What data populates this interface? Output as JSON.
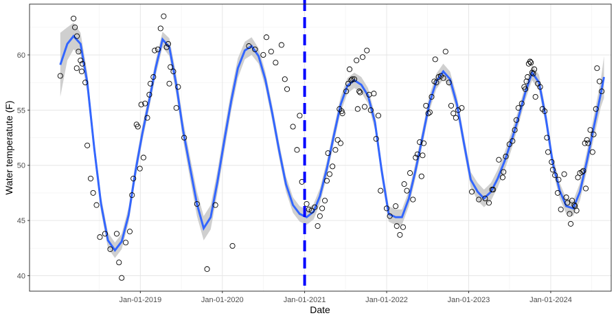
{
  "chart_data": {
    "type": "scatter",
    "title": "",
    "xlabel": "Date",
    "ylabel": "Water temperatute (F)",
    "x_tick_labels": [
      "Jan-01-2019",
      "Jan-01-2020",
      "Jan-01-2021",
      "Jan-01-2022",
      "Jan-01-2023",
      "Jan-01-2024"
    ],
    "x_ticks": [
      "2019-01-01",
      "2020-01-01",
      "2021-01-01",
      "2022-01-01",
      "2023-01-01",
      "2024-01-01"
    ],
    "xlim": [
      "2017-08-26",
      "2024-09-26"
    ],
    "y_ticks": [
      40,
      45,
      50,
      55,
      60
    ],
    "ylim": [
      38.6,
      64.6
    ],
    "grid": true,
    "vline": {
      "x": "2021-01-01",
      "color": "#0000ff",
      "style": "dashed"
    },
    "colors": {
      "smooth": "#3366ff",
      "band": "#bfbfbf",
      "points": "#000000",
      "vline": "#0000ff"
    },
    "points": [
      [
        "2018-01-10",
        58.1
      ],
      [
        "2018-03-10",
        63.3
      ],
      [
        "2018-03-16",
        62.5
      ],
      [
        "2018-03-25",
        61.7
      ],
      [
        "2018-04-01",
        60.3
      ],
      [
        "2018-03-24",
        58.8
      ],
      [
        "2018-04-10",
        59.5
      ],
      [
        "2018-04-18",
        59.2
      ],
      [
        "2018-04-15",
        58.5
      ],
      [
        "2018-05-01",
        57.5
      ],
      [
        "2018-05-10",
        51.8
      ],
      [
        "2018-05-25",
        48.8
      ],
      [
        "2018-06-05",
        47.5
      ],
      [
        "2018-06-20",
        46.4
      ],
      [
        "2018-07-05",
        43.5
      ],
      [
        "2018-07-28",
        43.8
      ],
      [
        "2018-08-20",
        42.4
      ],
      [
        "2018-09-18",
        43.8
      ],
      [
        "2018-09-28",
        41.2
      ],
      [
        "2018-10-10",
        39.8
      ],
      [
        "2018-10-28",
        43.0
      ],
      [
        "2018-11-15",
        44.0
      ],
      [
        "2018-11-25",
        47.3
      ],
      [
        "2018-12-01",
        48.8
      ],
      [
        "2018-12-15",
        53.7
      ],
      [
        "2018-12-21",
        53.5
      ],
      [
        "2018-12-30",
        49.7
      ],
      [
        "2019-01-05",
        55.5
      ],
      [
        "2019-01-15",
        50.7
      ],
      [
        "2019-01-22",
        55.6
      ],
      [
        "2019-02-01",
        54.3
      ],
      [
        "2019-02-10",
        56.4
      ],
      [
        "2019-02-15",
        57.4
      ],
      [
        "2019-02-28",
        58.0
      ],
      [
        "2019-03-06",
        60.4
      ],
      [
        "2019-03-20",
        60.5
      ],
      [
        "2019-04-01",
        62.4
      ],
      [
        "2019-04-15",
        63.5
      ],
      [
        "2019-04-28",
        60.7
      ],
      [
        "2019-05-05",
        61.0
      ],
      [
        "2019-05-10",
        57.4
      ],
      [
        "2019-05-15",
        58.9
      ],
      [
        "2019-05-28",
        58.5
      ],
      [
        "2019-06-10",
        55.2
      ],
      [
        "2019-06-18",
        57.1
      ],
      [
        "2019-07-15",
        52.5
      ],
      [
        "2019-09-10",
        46.5
      ],
      [
        "2019-10-25",
        40.6
      ],
      [
        "2019-12-01",
        46.4
      ],
      [
        "2020-02-15",
        42.7
      ],
      [
        "2020-04-28",
        60.8
      ],
      [
        "2020-05-25",
        60.5
      ],
      [
        "2020-07-01",
        60.0
      ],
      [
        "2020-07-15",
        61.6
      ],
      [
        "2020-08-05",
        60.3
      ],
      [
        "2020-08-25",
        59.3
      ],
      [
        "2020-09-20",
        60.9
      ],
      [
        "2020-10-05",
        57.8
      ],
      [
        "2020-10-15",
        56.9
      ],
      [
        "2020-11-10",
        53.5
      ],
      [
        "2020-11-28",
        51.4
      ],
      [
        "2020-12-10",
        54.5
      ],
      [
        "2020-12-20",
        48.5
      ],
      [
        "2021-01-10",
        46.5
      ],
      [
        "2021-01-20",
        46.0
      ],
      [
        "2021-02-01",
        45.9
      ],
      [
        "2021-02-15",
        46.2
      ],
      [
        "2021-02-28",
        44.5
      ],
      [
        "2021-03-10",
        45.4
      ],
      [
        "2021-03-20",
        46.1
      ],
      [
        "2021-04-01",
        46.8
      ],
      [
        "2021-04-10",
        48.6
      ],
      [
        "2021-04-15",
        51.1
      ],
      [
        "2021-04-22",
        49.2
      ],
      [
        "2021-05-05",
        49.9
      ],
      [
        "2021-05-18",
        51.4
      ],
      [
        "2021-05-28",
        52.3
      ],
      [
        "2021-06-05",
        55.1
      ],
      [
        "2021-06-10",
        52.0
      ],
      [
        "2021-06-15",
        54.9
      ],
      [
        "2021-06-18",
        54.7
      ],
      [
        "2021-07-05",
        56.7
      ],
      [
        "2021-07-14",
        57.4
      ],
      [
        "2021-07-20",
        58.7
      ],
      [
        "2021-07-27",
        57.7
      ],
      [
        "2021-08-01",
        57.8
      ],
      [
        "2021-08-10",
        57.8
      ],
      [
        "2021-08-20",
        59.5
      ],
      [
        "2021-08-25",
        55.1
      ],
      [
        "2021-09-01",
        56.7
      ],
      [
        "2021-09-05",
        56.6
      ],
      [
        "2021-09-16",
        59.8
      ],
      [
        "2021-09-25",
        55.3
      ],
      [
        "2021-10-05",
        60.4
      ],
      [
        "2021-10-15",
        56.4
      ],
      [
        "2021-10-22",
        55.0
      ],
      [
        "2021-11-05",
        56.5
      ],
      [
        "2021-11-15",
        52.4
      ],
      [
        "2021-11-25",
        54.5
      ],
      [
        "2021-12-05",
        47.7
      ],
      [
        "2022-01-01",
        46.1
      ],
      [
        "2022-01-15",
        45.4
      ],
      [
        "2022-02-10",
        46.3
      ],
      [
        "2022-02-15",
        44.5
      ],
      [
        "2022-03-01",
        43.7
      ],
      [
        "2022-03-15",
        44.4
      ],
      [
        "2022-03-20",
        48.3
      ],
      [
        "2022-04-01",
        47.7
      ],
      [
        "2022-04-15",
        49.3
      ],
      [
        "2022-04-28",
        46.9
      ],
      [
        "2022-05-10",
        50.7
      ],
      [
        "2022-05-18",
        51.0
      ],
      [
        "2022-05-28",
        52.1
      ],
      [
        "2022-06-05",
        49.0
      ],
      [
        "2022-06-10",
        50.9
      ],
      [
        "2022-06-15",
        52.0
      ],
      [
        "2022-06-25",
        55.4
      ],
      [
        "2022-07-05",
        54.7
      ],
      [
        "2022-07-12",
        54.8
      ],
      [
        "2022-07-20",
        56.2
      ],
      [
        "2022-08-01",
        57.6
      ],
      [
        "2022-08-05",
        59.6
      ],
      [
        "2022-08-10",
        57.5
      ],
      [
        "2022-08-20",
        58.0
      ],
      [
        "2022-08-30",
        58.1
      ],
      [
        "2022-09-10",
        57.9
      ],
      [
        "2022-09-20",
        60.3
      ],
      [
        "2022-10-05",
        57.5
      ],
      [
        "2022-10-15",
        55.4
      ],
      [
        "2022-10-25",
        54.7
      ],
      [
        "2022-11-05",
        54.3
      ],
      [
        "2022-11-15",
        55.0
      ],
      [
        "2022-12-01",
        55.2
      ],
      [
        "2023-01-15",
        47.6
      ],
      [
        "2023-02-15",
        46.9
      ],
      [
        "2023-03-15",
        47.0
      ],
      [
        "2023-04-01",
        46.6
      ],
      [
        "2023-04-15",
        47.8
      ],
      [
        "2023-04-20",
        47.8
      ],
      [
        "2023-05-15",
        50.5
      ],
      [
        "2023-06-01",
        48.9
      ],
      [
        "2023-06-05",
        49.4
      ],
      [
        "2023-06-15",
        50.8
      ],
      [
        "2023-07-01",
        51.9
      ],
      [
        "2023-07-15",
        52.2
      ],
      [
        "2023-07-25",
        53.2
      ],
      [
        "2023-08-01",
        54.1
      ],
      [
        "2023-08-10",
        55.2
      ],
      [
        "2023-08-25",
        55.6
      ],
      [
        "2023-09-05",
        57.1
      ],
      [
        "2023-09-10",
        56.9
      ],
      [
        "2023-09-15",
        57.6
      ],
      [
        "2023-09-20",
        58.0
      ],
      [
        "2023-09-25",
        59.2
      ],
      [
        "2023-10-01",
        59.4
      ],
      [
        "2023-10-05",
        59.3
      ],
      [
        "2023-10-10",
        58.4
      ],
      [
        "2023-10-15",
        58.3
      ],
      [
        "2023-10-20",
        58.7
      ],
      [
        "2023-10-25",
        56.2
      ],
      [
        "2023-11-05",
        57.4
      ],
      [
        "2023-11-15",
        57.1
      ],
      [
        "2023-11-25",
        55.1
      ],
      [
        "2023-12-05",
        54.9
      ],
      [
        "2023-12-15",
        52.5
      ],
      [
        "2023-12-20",
        51.2
      ],
      [
        "2024-01-05",
        50.3
      ],
      [
        "2024-01-10",
        49.6
      ],
      [
        "2024-01-20",
        49.1
      ],
      [
        "2024-02-01",
        47.5
      ],
      [
        "2024-02-05",
        48.7
      ],
      [
        "2024-02-15",
        46.0
      ],
      [
        "2024-03-01",
        49.2
      ],
      [
        "2024-03-10",
        47.1
      ],
      [
        "2024-03-15",
        46.6
      ],
      [
        "2024-03-25",
        45.6
      ],
      [
        "2024-03-30",
        44.7
      ],
      [
        "2024-04-05",
        46.8
      ],
      [
        "2024-04-15",
        46.4
      ],
      [
        "2024-04-18",
        46.3
      ],
      [
        "2024-04-25",
        45.9
      ],
      [
        "2024-05-01",
        48.9
      ],
      [
        "2024-05-10",
        49.3
      ],
      [
        "2024-05-20",
        49.4
      ],
      [
        "2024-05-25",
        49.5
      ],
      [
        "2024-06-01",
        52.0
      ],
      [
        "2024-06-05",
        47.9
      ],
      [
        "2024-06-10",
        52.3
      ],
      [
        "2024-06-15",
        52.0
      ],
      [
        "2024-06-25",
        53.2
      ],
      [
        "2024-07-05",
        51.2
      ],
      [
        "2024-07-10",
        52.8
      ],
      [
        "2024-07-20",
        55.1
      ],
      [
        "2024-07-25",
        58.8
      ],
      [
        "2024-08-05",
        57.6
      ],
      [
        "2024-08-15",
        56.7
      ]
    ],
    "smooth": [
      [
        "2018-01-10",
        59.1
      ],
      [
        "2018-02-10",
        61.0
      ],
      [
        "2018-03-10",
        61.7
      ],
      [
        "2018-04-10",
        61.0
      ],
      [
        "2018-05-10",
        57.5
      ],
      [
        "2018-06-10",
        51.5
      ],
      [
        "2018-07-10",
        46.5
      ],
      [
        "2018-08-10",
        43.2
      ],
      [
        "2018-09-10",
        42.3
      ],
      [
        "2018-10-10",
        43.1
      ],
      [
        "2018-11-10",
        45.5
      ],
      [
        "2018-12-10",
        49.4
      ],
      [
        "2019-01-10",
        52.9
      ],
      [
        "2019-02-10",
        55.9
      ],
      [
        "2019-03-10",
        58.8
      ],
      [
        "2019-04-10",
        61.4
      ],
      [
        "2019-05-10",
        60.7
      ],
      [
        "2019-06-10",
        57.3
      ],
      [
        "2019-07-10",
        53.2
      ],
      [
        "2019-08-10",
        49.8
      ],
      [
        "2019-09-10",
        46.5
      ],
      [
        "2019-10-10",
        44.3
      ],
      [
        "2019-11-10",
        45.3
      ],
      [
        "2019-12-10",
        48.5
      ],
      [
        "2020-01-10",
        52.3
      ],
      [
        "2020-02-10",
        55.9
      ],
      [
        "2020-03-10",
        58.8
      ],
      [
        "2020-04-10",
        60.4
      ],
      [
        "2020-05-10",
        60.8
      ],
      [
        "2020-06-10",
        59.9
      ],
      [
        "2020-07-10",
        57.8
      ],
      [
        "2020-08-10",
        54.7
      ],
      [
        "2020-09-10",
        51.3
      ],
      [
        "2020-10-10",
        48.3
      ],
      [
        "2020-11-10",
        46.4
      ],
      [
        "2020-12-10",
        45.6
      ],
      [
        "2021-01-10",
        45.3
      ],
      [
        "2021-02-10",
        45.8
      ],
      [
        "2021-03-10",
        47.2
      ],
      [
        "2021-04-10",
        49.7
      ],
      [
        "2021-05-10",
        52.6
      ],
      [
        "2021-06-10",
        55.5
      ],
      [
        "2021-07-10",
        57.2
      ],
      [
        "2021-08-10",
        57.7
      ],
      [
        "2021-09-10",
        57.3
      ],
      [
        "2021-10-10",
        56.3
      ],
      [
        "2021-11-10",
        53.9
      ],
      [
        "2021-12-10",
        49.5
      ],
      [
        "2022-01-10",
        45.6
      ],
      [
        "2022-02-10",
        45.3
      ],
      [
        "2022-03-10",
        45.3
      ],
      [
        "2022-04-10",
        47.0
      ],
      [
        "2022-05-10",
        49.6
      ],
      [
        "2022-06-10",
        52.6
      ],
      [
        "2022-07-10",
        55.6
      ],
      [
        "2022-08-10",
        57.6
      ],
      [
        "2022-09-10",
        58.5
      ],
      [
        "2022-10-10",
        57.8
      ],
      [
        "2022-11-10",
        55.5
      ],
      [
        "2022-12-10",
        52.1
      ],
      [
        "2023-01-10",
        48.7
      ],
      [
        "2023-02-10",
        47.6
      ],
      [
        "2023-03-10",
        47.0
      ],
      [
        "2023-04-10",
        47.6
      ],
      [
        "2023-05-10",
        48.8
      ],
      [
        "2023-06-10",
        50.4
      ],
      [
        "2023-07-10",
        52.2
      ],
      [
        "2023-08-10",
        54.3
      ],
      [
        "2023-09-10",
        56.6
      ],
      [
        "2023-10-10",
        58.4
      ],
      [
        "2023-11-10",
        57.5
      ],
      [
        "2023-12-10",
        54.3
      ],
      [
        "2024-01-10",
        50.2
      ],
      [
        "2024-02-10",
        47.7
      ],
      [
        "2024-03-10",
        46.3
      ],
      [
        "2024-04-10",
        46.1
      ],
      [
        "2024-05-10",
        47.6
      ],
      [
        "2024-06-10",
        50.4
      ],
      [
        "2024-07-10",
        53.4
      ],
      [
        "2024-08-10",
        56.4
      ],
      [
        "2024-08-25",
        58.0
      ]
    ],
    "band_halfwidth": [
      2.9,
      1.5,
      1.2,
      1.0,
      0.9,
      0.8,
      0.7,
      0.7,
      0.7,
      0.7,
      0.7,
      0.7,
      0.7,
      0.7,
      0.7,
      0.7,
      0.8,
      0.9,
      0.9,
      1.0,
      1.1,
      1.1,
      1.1,
      1.0,
      1.0,
      0.9,
      0.9,
      0.8,
      0.8,
      0.7,
      0.7,
      0.7,
      0.7,
      0.7,
      0.7,
      0.7,
      0.7,
      0.7,
      0.7,
      0.7,
      0.7,
      0.7,
      0.7,
      0.7,
      0.7,
      0.7,
      0.7,
      0.7,
      0.7,
      0.7,
      0.7,
      0.7,
      0.7,
      0.7,
      0.7,
      0.7,
      0.7,
      0.7,
      0.7,
      0.7,
      0.7,
      0.8,
      0.8,
      0.8,
      0.8,
      0.8,
      0.8,
      0.7,
      0.7,
      0.7,
      0.7,
      0.7,
      0.7,
      0.7,
      0.7,
      0.7,
      0.8,
      0.9,
      1.0,
      1.2,
      1.9
    ]
  }
}
